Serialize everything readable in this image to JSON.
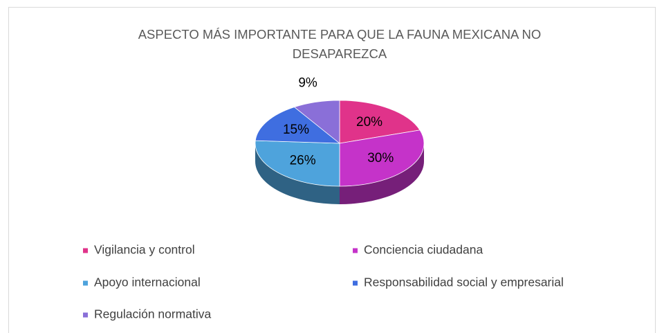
{
  "chart_data": {
    "type": "pie3d",
    "title": "ASPECTO MÁS IMPORTANTE PARA QUE LA FAUNA MEXICANA NO DESAPAREZCA",
    "categories": [
      "Vigilancia y control",
      "Conciencia ciudadana",
      "Apoyo internacional",
      "Responsabilidad social y empresarial",
      "Regulación normativa"
    ],
    "values": [
      20,
      30,
      26,
      15,
      9
    ],
    "value_labels": [
      "20%",
      "30%",
      "26%",
      "15%",
      "9%"
    ],
    "colors": [
      "#e0338a",
      "#c533c9",
      "#4ea3dc",
      "#3f6ee0",
      "#8a6fd8"
    ],
    "legend": "bottom"
  }
}
